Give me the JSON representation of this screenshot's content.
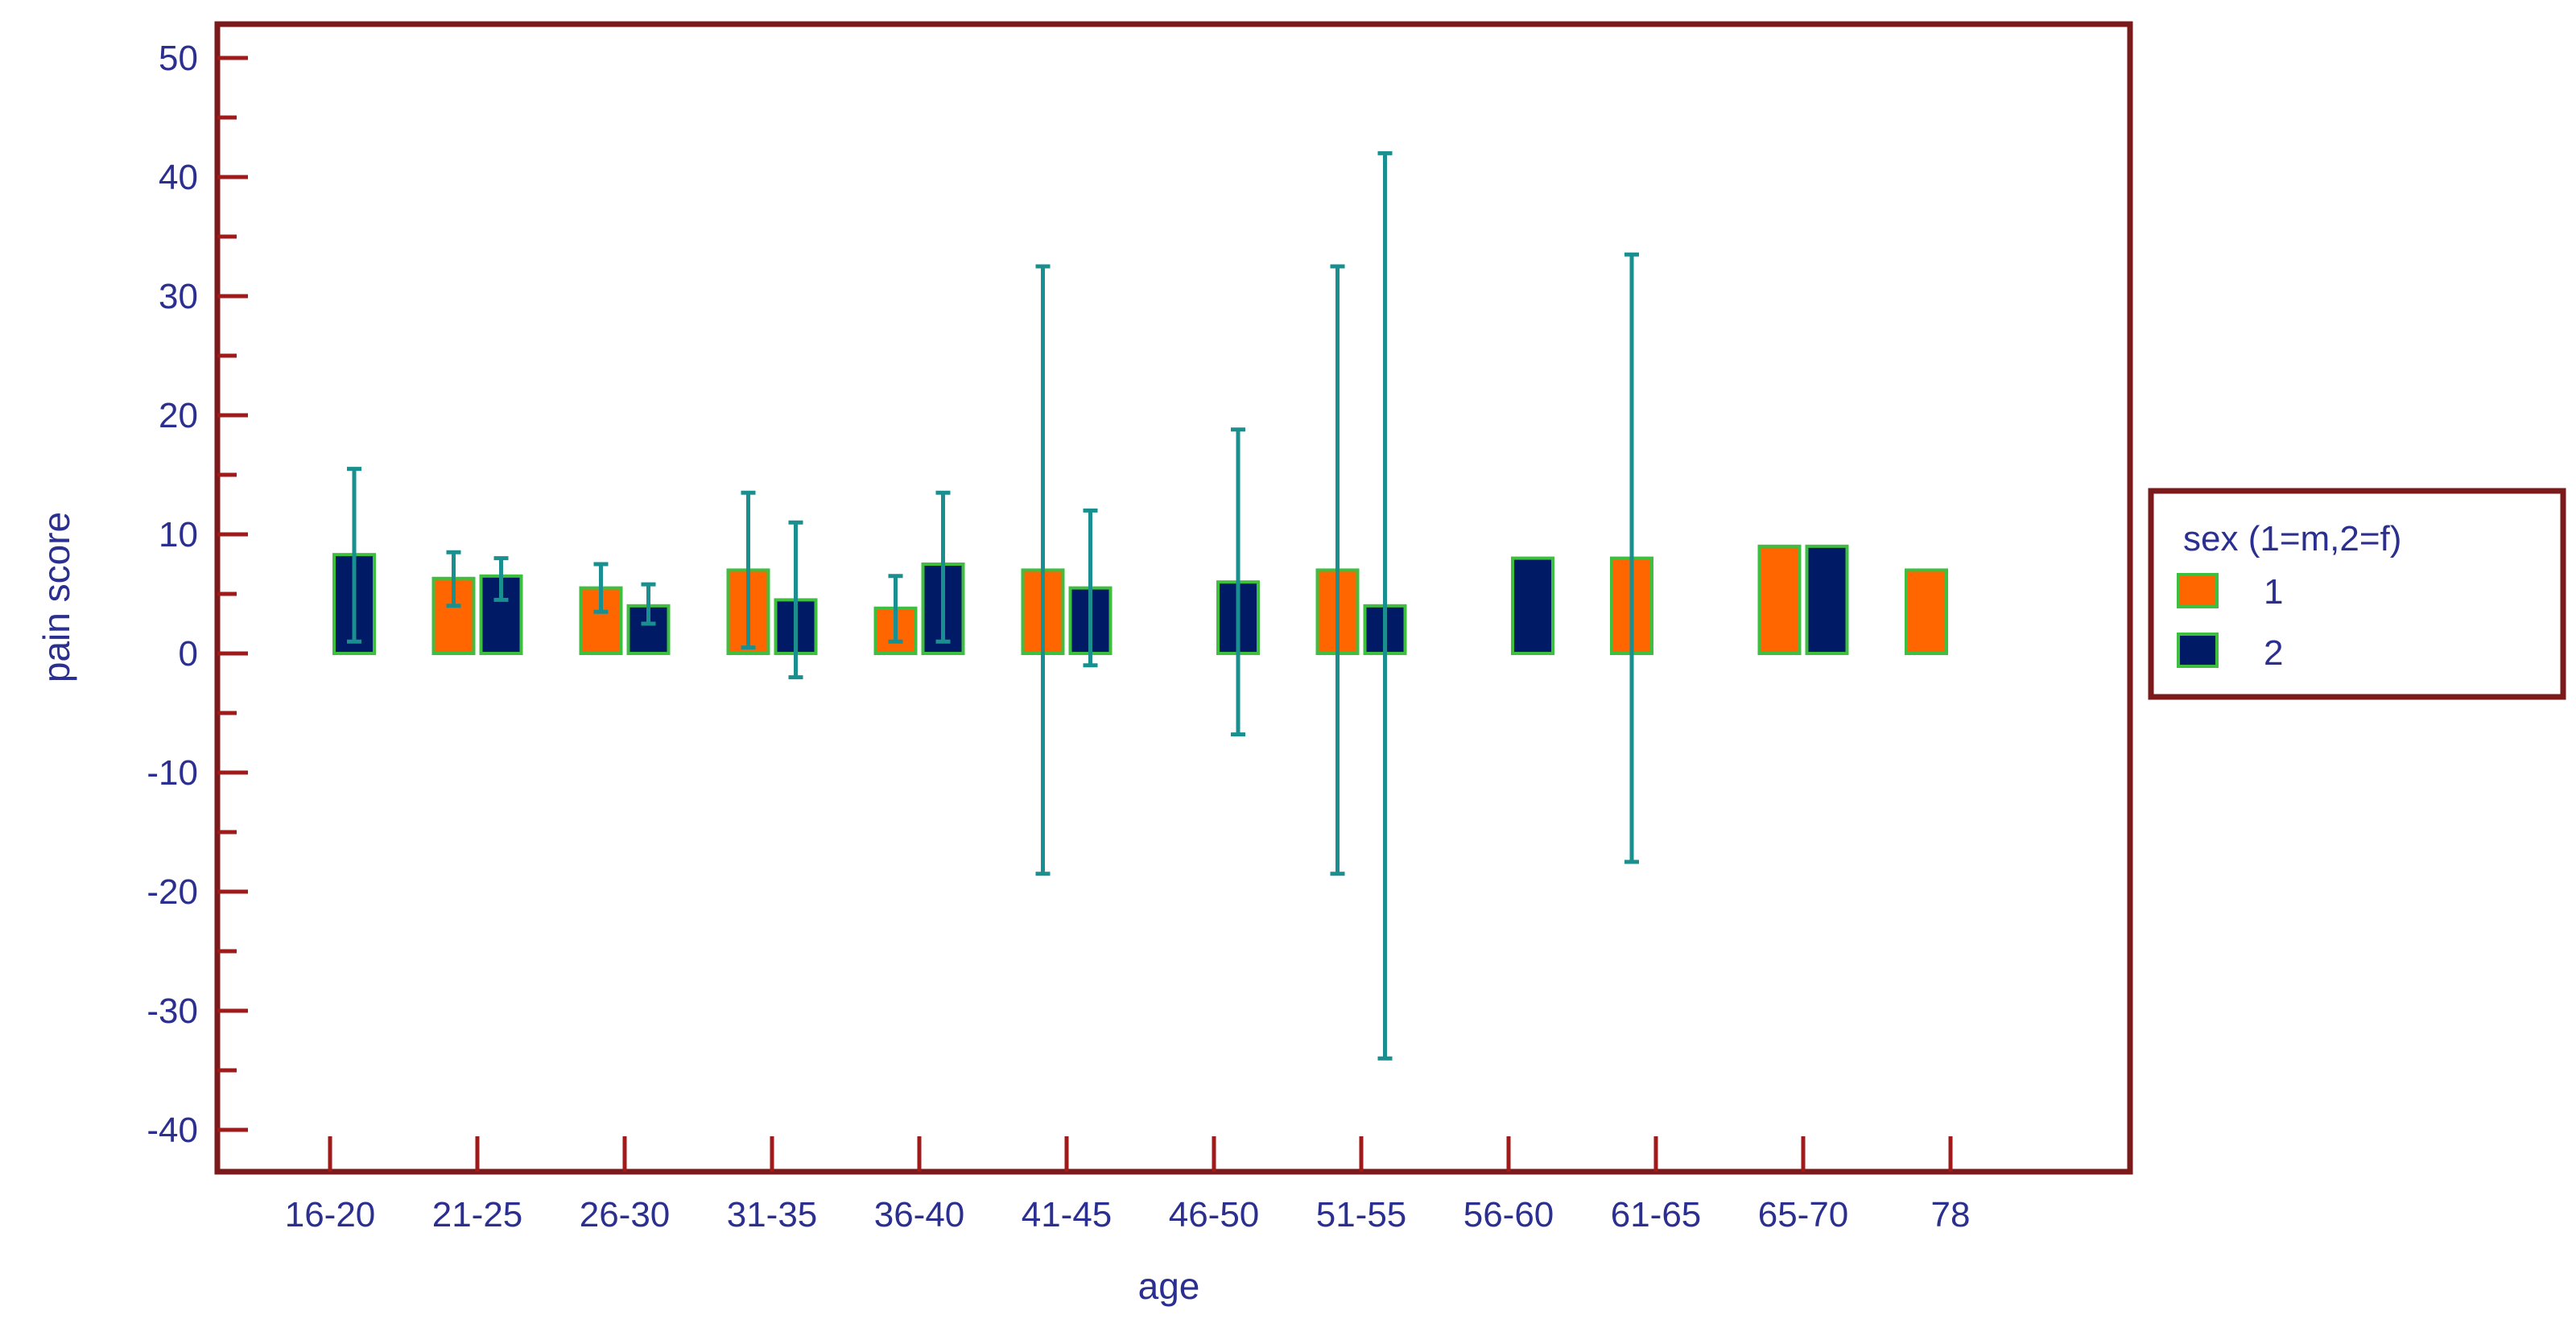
{
  "chart_data": {
    "type": "bar",
    "xlabel": "age",
    "ylabel": "pain score",
    "ylim": [
      -42,
      52
    ],
    "yticks": [
      50,
      40,
      30,
      20,
      10,
      0,
      -10,
      -20,
      -30,
      -40
    ],
    "grid": false,
    "legend": {
      "title": "sex (1=m,2=f)",
      "placement": "right"
    },
    "categories": [
      "16-20",
      "21-25",
      "26-30",
      "31-35",
      "36-40",
      "41-45",
      "46-50",
      "51-55",
      "56-60",
      "61-65",
      "65-70",
      "78"
    ],
    "series": [
      {
        "name": "1",
        "color": "#ff6600",
        "values": [
          null,
          6.3,
          5.5,
          7.0,
          3.8,
          7.0,
          null,
          7.0,
          null,
          8.0,
          9.0,
          7.0
        ],
        "error_low": [
          null,
          4.0,
          3.5,
          0.5,
          1.0,
          -18.5,
          null,
          -18.5,
          null,
          -17.5,
          null,
          null
        ],
        "error_high": [
          null,
          8.5,
          7.5,
          13.5,
          6.5,
          32.5,
          null,
          32.5,
          null,
          33.5,
          null,
          null
        ]
      },
      {
        "name": "2",
        "color": "#001a66",
        "values": [
          8.3,
          6.5,
          4.0,
          4.5,
          7.5,
          5.5,
          6.0,
          4.0,
          8.0,
          null,
          9.0,
          null
        ],
        "error_low": [
          1.0,
          4.5,
          2.5,
          -2.0,
          1.0,
          -1.0,
          -6.8,
          -34.0,
          null,
          null,
          null,
          null
        ],
        "error_high": [
          15.5,
          8.0,
          5.8,
          11.0,
          13.5,
          12.0,
          18.8,
          42.0,
          null,
          null,
          null,
          null
        ]
      }
    ],
    "colors": {
      "frame": "#7a1a1a",
      "axis": "#a01a1a",
      "bar_border": "#3fbf3f",
      "error_bar": "#1a8f8f",
      "text": "#2b2f8f"
    }
  }
}
